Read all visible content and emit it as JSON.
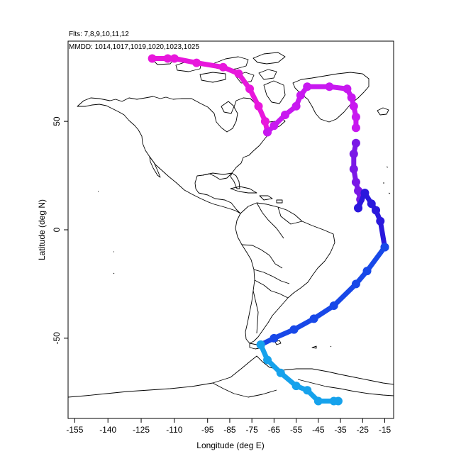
{
  "header": {
    "flights_line": "Flts: 7,8,9,10,11,12",
    "dates_line": "MMDD: 1014,1017,1019,1020,1023,1025"
  },
  "axes": {
    "xlabel": "Longitude (deg E)",
    "ylabel": "Latitude (deg N)",
    "xlim": [
      -158,
      -11
    ],
    "ylim": [
      -87,
      87
    ],
    "x_ticks": [
      -155,
      -140,
      -125,
      -110,
      -95,
      -85,
      -75,
      -65,
      -55,
      -45,
      -35,
      -25,
      -15
    ],
    "y_ticks": [
      50,
      0,
      -50
    ]
  },
  "colors": {
    "leg1": "#e817dc",
    "leg2": "#c818f0",
    "leg3": "#7a18e6",
    "leg4": "#2a18dc",
    "leg5": "#1848e8",
    "leg6": "#16a2ec",
    "coast": "#000000"
  },
  "chart_data": {
    "type": "scatter",
    "title": "",
    "xlabel": "Longitude (deg E)",
    "ylabel": "Latitude (deg N)",
    "xlim": [
      -158,
      -11
    ],
    "ylim": [
      -87,
      87
    ],
    "series": [
      {
        "color_key": "leg1",
        "lon": [
          -120,
          -113,
          -110,
          -100,
          -88,
          -81,
          -76,
          -72,
          -69,
          -68
        ],
        "lat": [
          79,
          79,
          79,
          77,
          75,
          72,
          65,
          57,
          50,
          45
        ]
      },
      {
        "color_key": "leg2",
        "lon": [
          -68,
          -65,
          -60,
          -55,
          -53,
          -50,
          -40,
          -32,
          -30,
          -29,
          -28,
          -28
        ],
        "lat": [
          45,
          48,
          53,
          57,
          62,
          66,
          66,
          65,
          61,
          57,
          52,
          47
        ]
      },
      {
        "color_key": "leg3",
        "lon": [
          -28,
          -29,
          -29,
          -28,
          -27,
          -26,
          -27
        ],
        "lat": [
          40,
          35,
          28,
          22,
          18,
          14,
          10
        ]
      },
      {
        "color_key": "leg4",
        "lon": [
          -27,
          -24,
          -21,
          -19,
          -17,
          -15
        ],
        "lat": [
          10,
          17,
          12,
          9,
          4,
          -8
        ]
      },
      {
        "color_key": "leg5",
        "lon": [
          -15,
          -23,
          -28,
          -38,
          -47,
          -56,
          -65,
          -71
        ],
        "lat": [
          -8,
          -19,
          -25,
          -35,
          -41,
          -46,
          -50,
          -53
        ]
      },
      {
        "color_key": "leg6",
        "lon": [
          -71,
          -68,
          -62,
          -55,
          -50,
          -45,
          -38,
          -36
        ],
        "lat": [
          -53,
          -60,
          -66,
          -72,
          -74,
          -79,
          -79,
          -79
        ]
      }
    ]
  }
}
